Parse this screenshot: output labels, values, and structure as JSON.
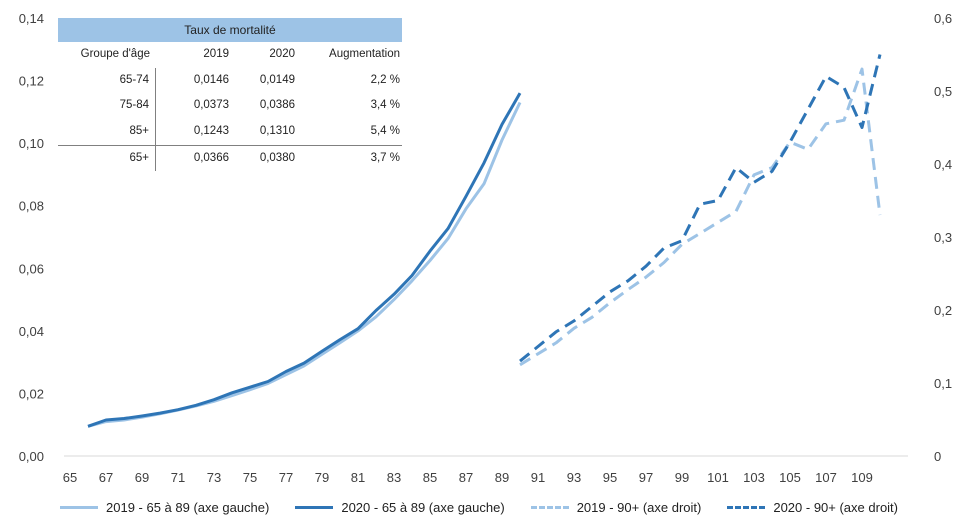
{
  "colors": {
    "light": "#9dc3e6",
    "dark": "#2e75b6",
    "axis": "#404040"
  },
  "table": {
    "title": "Taux de mortalité",
    "headers": [
      "Groupe d'âge",
      "2019",
      "2020",
      "Augmentation"
    ],
    "rows": [
      [
        "65-74",
        "0,0146",
        "0,0149",
        "2,2 %"
      ],
      [
        "75-84",
        "0,0373",
        "0,0386",
        "3,4 %"
      ],
      [
        "85+",
        "0,1243",
        "0,1310",
        "5,4 %"
      ]
    ],
    "total": [
      "65+",
      "0,0366",
      "0,0380",
      "3,7 %"
    ]
  },
  "chart_data": {
    "type": "line",
    "x_tick_labels": [
      "65",
      "67",
      "69",
      "71",
      "73",
      "75",
      "77",
      "79",
      "81",
      "83",
      "85",
      "87",
      "89",
      "91",
      "93",
      "95",
      "97",
      "99",
      "101",
      "103",
      "105",
      "107",
      "109"
    ],
    "y_left_tick_labels": [
      "0,00",
      "0,02",
      "0,04",
      "0,06",
      "0,08",
      "0,10",
      "0,12",
      "0,14"
    ],
    "y_right_tick_labels": [
      "0",
      "0,1",
      "0,2",
      "0,3",
      "0,4",
      "0,5",
      "0,6"
    ],
    "ylim_left": [
      0,
      0.14
    ],
    "ylim_right": [
      0,
      0.6
    ],
    "xlim": [
      65,
      111
    ],
    "legend_position": "bottom",
    "series": [
      {
        "name": "2019 - 65 à 89 (axe gauche)",
        "axis": "left",
        "style": "solid",
        "color": "light",
        "x": [
          66,
          67,
          68,
          69,
          70,
          71,
          72,
          73,
          74,
          75,
          76,
          77,
          78,
          79,
          80,
          81,
          82,
          83,
          84,
          85,
          86,
          87,
          88,
          89,
          90
        ],
        "y": [
          0.0095,
          0.011,
          0.0115,
          0.0124,
          0.0135,
          0.0147,
          0.016,
          0.0175,
          0.0193,
          0.0212,
          0.0232,
          0.026,
          0.0288,
          0.0325,
          0.0362,
          0.04,
          0.0445,
          0.05,
          0.056,
          0.0625,
          0.0695,
          0.079,
          0.087,
          0.101,
          0.113
        ]
      },
      {
        "name": "2020 - 65 à 89 (axe gauche)",
        "axis": "left",
        "style": "solid",
        "color": "dark",
        "x": [
          66,
          67,
          68,
          69,
          70,
          71,
          72,
          73,
          74,
          75,
          76,
          77,
          78,
          79,
          80,
          81,
          82,
          83,
          84,
          85,
          86,
          87,
          88,
          89,
          90
        ],
        "y": [
          0.0095,
          0.0115,
          0.012,
          0.0128,
          0.0137,
          0.0148,
          0.0162,
          0.018,
          0.0202,
          0.022,
          0.0238,
          0.027,
          0.0297,
          0.0335,
          0.0372,
          0.0407,
          0.0465,
          0.0517,
          0.0577,
          0.0655,
          0.0727,
          0.083,
          0.0937,
          0.106,
          0.116
        ]
      },
      {
        "name": "2019 - 90+ (axe droit)",
        "axis": "right",
        "style": "dashed",
        "color": "light",
        "x": [
          90,
          91,
          92,
          93,
          94,
          95,
          96,
          97,
          98,
          99,
          100,
          101,
          102,
          103,
          104,
          105,
          106,
          107,
          108,
          109,
          110
        ],
        "y": [
          0.125,
          0.14,
          0.155,
          0.175,
          0.19,
          0.21,
          0.228,
          0.245,
          0.265,
          0.29,
          0.305,
          0.32,
          0.335,
          0.385,
          0.395,
          0.43,
          0.42,
          0.455,
          0.46,
          0.53,
          0.33
        ]
      },
      {
        "name": "2020 - 90+ (axe droit)",
        "axis": "right",
        "style": "dashed",
        "color": "dark",
        "x": [
          90,
          91,
          92,
          93,
          94,
          95,
          96,
          97,
          98,
          99,
          100,
          101,
          102,
          103,
          104,
          105,
          106,
          107,
          108,
          109,
          110
        ],
        "y": [
          0.13,
          0.15,
          0.17,
          0.185,
          0.205,
          0.225,
          0.24,
          0.26,
          0.285,
          0.295,
          0.345,
          0.35,
          0.395,
          0.375,
          0.39,
          0.43,
          0.475,
          0.52,
          0.505,
          0.45,
          0.55
        ]
      }
    ]
  }
}
